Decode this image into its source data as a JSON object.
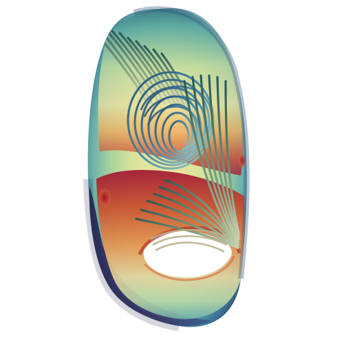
{
  "scene": {
    "background": "#ffffff",
    "subject": "3d-streamline-visualization",
    "colormap": {
      "name": "spectral",
      "stops": [
        "#3b2a5c",
        "#2f6f8f",
        "#5aa7b0",
        "#9fd0a4",
        "#e6e69a",
        "#f2b25a",
        "#d9502a",
        "#9e1030"
      ]
    },
    "surface_colors": {
      "outer_dark": "#3a3566",
      "rim": "#2e4f7a",
      "green": "#b7d79a",
      "yellow": "#e8e0a0",
      "orange": "#e08a4a",
      "red": "#a3122d",
      "hole": "#ffffff"
    },
    "streamline_colors": {
      "tube_dark": "#2f5e5a",
      "tube_mid": "#6c8f7a",
      "tube_light": "#b7c7a8",
      "tube_blue": "#3b7aa8",
      "tube_teal": "#4b9aa0"
    }
  }
}
